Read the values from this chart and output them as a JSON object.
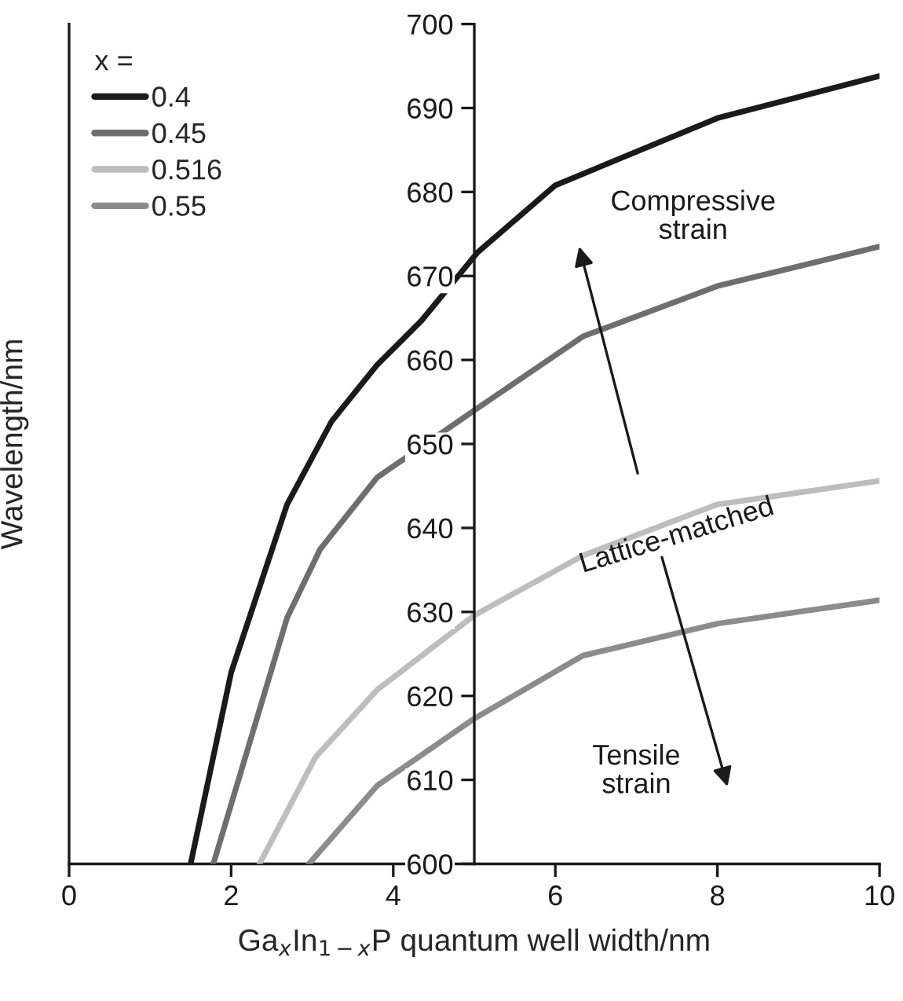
{
  "chart_data": {
    "type": "line",
    "xlabel": "Ga$_{x}$In$_{1−x}$P quantum well width/nm",
    "ylabel": "Wavelength/nm",
    "legend_title": "x =",
    "xlim": [
      0,
      10
    ],
    "xticks": [
      0,
      2,
      4,
      6,
      8,
      10
    ],
    "ylim": [
      600,
      700
    ],
    "yticks": [
      600,
      610,
      620,
      630,
      640,
      650,
      660,
      670,
      680,
      690,
      700
    ],
    "grid": false,
    "legend": "top left",
    "marker": "none",
    "line_style": "solid",
    "series": [
      {
        "name": "0.4",
        "color": "#1a1a1a",
        "x": [
          1.5,
          2.0,
          2.69,
          3.24,
          3.8,
          4.35,
          5.04,
          6.0,
          8.0,
          10.0
        ],
        "values": [
          600,
          622.8,
          642.8,
          652.7,
          659.4,
          664.7,
          672.8,
          680.8,
          688.8,
          693.8
        ]
      },
      {
        "name": "0.45",
        "color": "#6e6e6e",
        "x": [
          1.78,
          2.69,
          3.1,
          3.8,
          5.0,
          6.34,
          8.0,
          10.0
        ],
        "values": [
          600,
          629.3,
          637.5,
          646.0,
          654.0,
          662.8,
          668.8,
          673.5
        ]
      },
      {
        "name": "0.516",
        "color": "#bdbdbd",
        "x": [
          2.35,
          3.04,
          3.8,
          5.0,
          6.34,
          8.0,
          10.0
        ],
        "values": [
          600,
          612.7,
          620.7,
          629.6,
          636.7,
          642.8,
          645.6
        ]
      },
      {
        "name": "0.55",
        "color": "#8c8c8c",
        "x": [
          2.96,
          3.8,
          5.0,
          6.34,
          8.0,
          10.0
        ],
        "values": [
          600,
          609.3,
          617.3,
          624.8,
          628.6,
          631.4
        ]
      }
    ],
    "annotations": [
      "Compressive\nstrain",
      "Lattice-matched",
      "Tensile\nstrain"
    ]
  }
}
